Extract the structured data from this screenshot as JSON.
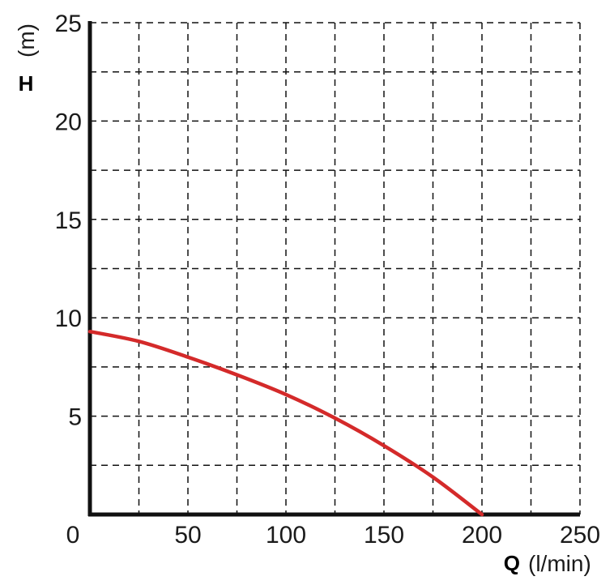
{
  "chart_data": {
    "type": "line",
    "xlabel": {
      "symbol": "Q",
      "unit": "(l/min)"
    },
    "ylabel": {
      "symbol": "H",
      "unit": "(m)"
    },
    "xlim": [
      0,
      250
    ],
    "ylim": [
      0,
      25
    ],
    "x_ticks": [
      0,
      50,
      100,
      150,
      200,
      250
    ],
    "y_ticks": [
      5,
      10,
      15,
      20,
      25
    ],
    "grid": true,
    "grid_style": "dashed",
    "series": [
      {
        "color": "#d42a2a",
        "x": [
          0,
          25,
          50,
          75,
          100,
          125,
          150,
          175,
          200
        ],
        "y": [
          9.3,
          8.8,
          8.0,
          7.1,
          6.1,
          4.9,
          3.5,
          1.9,
          0.0
        ]
      }
    ]
  }
}
